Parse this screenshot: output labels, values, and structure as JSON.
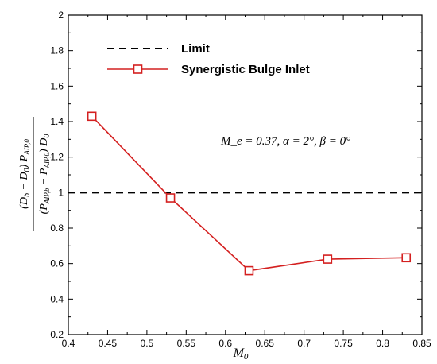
{
  "chart_data": {
    "type": "line",
    "xlabel_main": "M",
    "xlabel_sub": "0",
    "ylabel": "((D_b − D_0) P_AIP,0) / ((P_AIP,b − P_AIP,0) D_0)",
    "xlim": [
      0.4,
      0.85
    ],
    "ylim": [
      0.2,
      2.0
    ],
    "xticks": [
      "0.4",
      "0.45",
      "0.5",
      "0.55",
      "0.6",
      "0.65",
      "0.7",
      "0.75",
      "0.8",
      "0.85"
    ],
    "yticks": [
      "0.2",
      "0.4",
      "0.6",
      "0.8",
      "1",
      "1.2",
      "1.4",
      "1.6",
      "1.8",
      "2"
    ],
    "series": [
      {
        "name": "Synergistic Bulge Inlet",
        "color": "#d42020",
        "marker": "square",
        "x": [
          0.43,
          0.53,
          0.63,
          0.73,
          0.83
        ],
        "y": [
          1.43,
          0.97,
          0.56,
          0.625,
          0.633
        ]
      }
    ],
    "reference_lines": [
      {
        "name": "Limit",
        "y": 1.0,
        "style": "dashed",
        "color": "#000000"
      }
    ],
    "legend": {
      "position": "top-left"
    },
    "annotation": "M_e = 0.37, α = 2°, β = 0°",
    "grid": false
  }
}
